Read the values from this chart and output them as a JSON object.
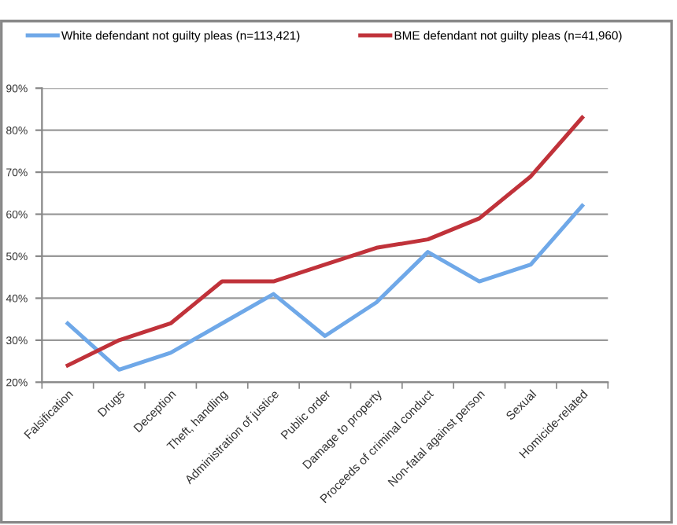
{
  "chart_data": {
    "type": "line",
    "categories": [
      "Falsification",
      "Drugs",
      "Deception",
      "Theft, handling",
      "Administration of justice",
      "Public order",
      "Damage to property",
      "Proceeds of criminal conduct",
      "Non-fatal against person",
      "Sexual",
      "Homicide-related"
    ],
    "series": [
      {
        "name": "White defendant not guilty pleas (n=113,421)",
        "color": "#6fa8e8",
        "values": [
          34,
          23,
          27,
          34,
          41,
          31,
          39,
          51,
          44,
          48,
          62
        ]
      },
      {
        "name": "BME defendant not guilty pleas (n=41,960)",
        "color": "#c0323a",
        "values": [
          24,
          30,
          34,
          44,
          44,
          48,
          52,
          54,
          59,
          69,
          83
        ]
      }
    ],
    "ylim": [
      20,
      90
    ],
    "yticks": [
      {
        "value": 20,
        "label": "20%"
      },
      {
        "value": 30,
        "label": "30%"
      },
      {
        "value": 40,
        "label": "40%"
      },
      {
        "value": 50,
        "label": "50%"
      },
      {
        "value": 60,
        "label": "60%"
      },
      {
        "value": 70,
        "label": "70%"
      },
      {
        "value": 80,
        "label": "80%"
      },
      {
        "value": 90,
        "label": "90%"
      }
    ],
    "grid": "y",
    "legend": "top",
    "marker": "none",
    "line_style": "solid"
  }
}
